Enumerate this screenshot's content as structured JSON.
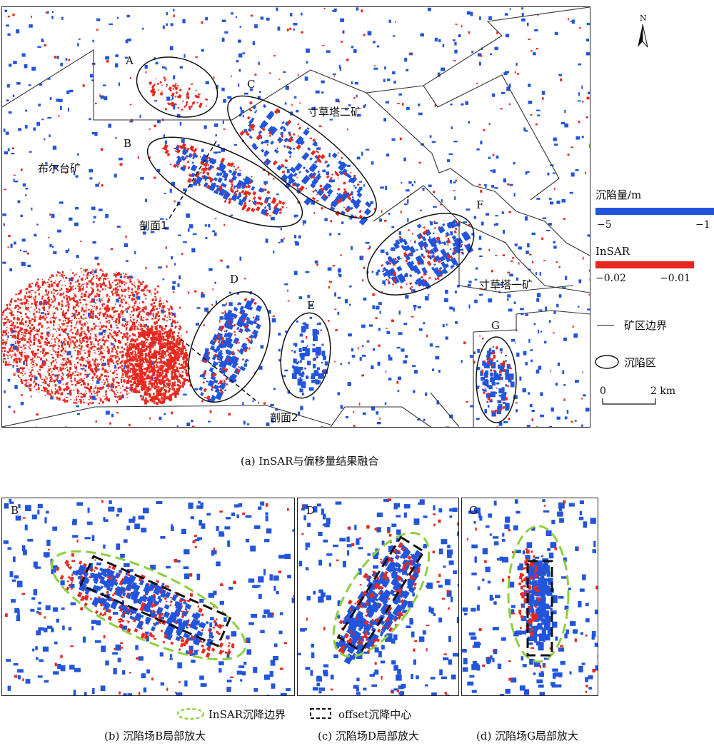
{
  "colors": {
    "subsidence_offset": "#2255dd",
    "subsidence_insar": "#e8281e",
    "insar_boundary": "#8ccf3c",
    "offset_center": "#111111",
    "boundary_line": "#222222"
  },
  "main_map": {
    "north_label": "N",
    "mine_labels": {
      "buertai": "布尔台矿",
      "cuncaota2": "寸草塔二矿",
      "cuncaota1": "寸草塔一矿"
    },
    "zone_labels": [
      "A",
      "B",
      "C",
      "D",
      "E",
      "F",
      "G"
    ],
    "profile_labels": [
      "剖面1",
      "剖面2"
    ]
  },
  "legend": {
    "offset_title": "沉陷量/m",
    "offset_min": "−5",
    "offset_max": "−1",
    "insar_title": "InSAR",
    "insar_min": "−0.02",
    "insar_max": "−0.01",
    "boundary_label": "矿区边界",
    "zone_label": "沉陷区",
    "scale_zero": "0",
    "scale_end": "2 km"
  },
  "captions": {
    "a": "(a) InSAR与偏移量结果融合",
    "b": "(b) 沉陷场B局部放大",
    "c": "(c) 沉陷场D局部放大",
    "d": "(d) 沉陷场G局部放大"
  },
  "insets": {
    "b_label": "B",
    "d_label": "D",
    "g_label": "G"
  },
  "bottom_legend": {
    "green_label": "InSAR沉降边界",
    "black_label": "offset沉降中心"
  }
}
